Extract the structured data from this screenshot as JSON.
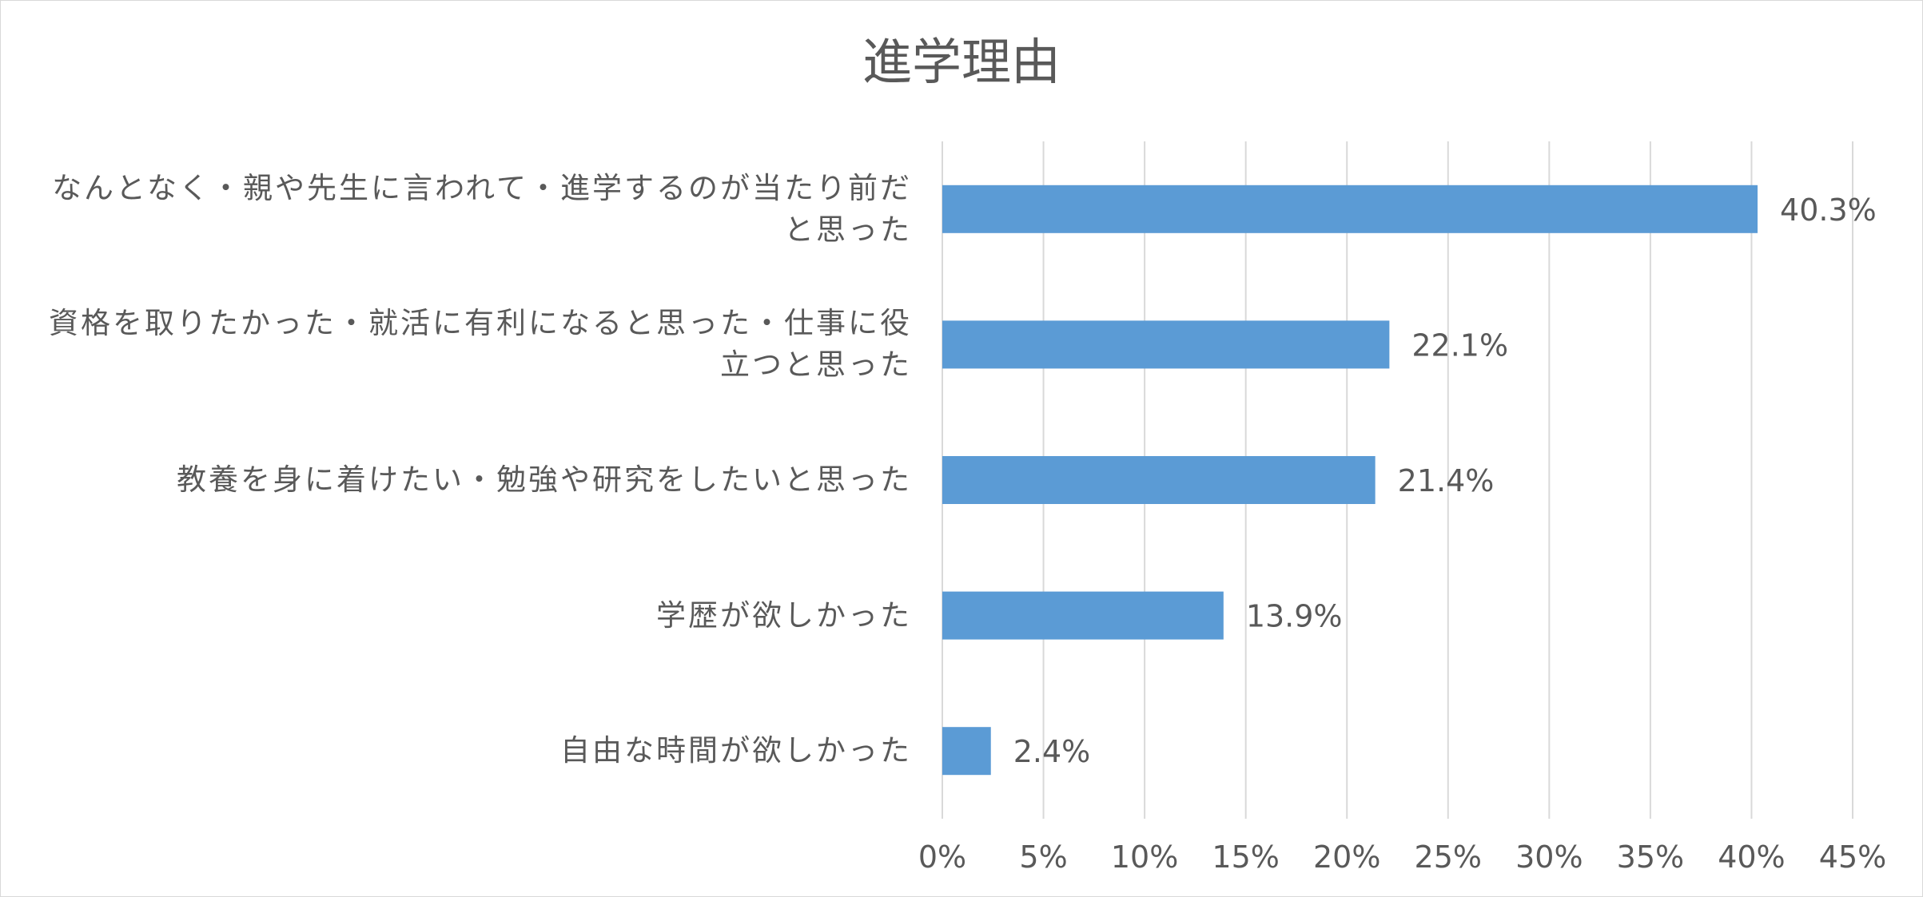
{
  "chart_data": {
    "type": "bar",
    "orientation": "horizontal",
    "title": "進学理由",
    "categories": [
      "なんとなく・親や先生に言われて・進学するのが当たり前だと思った",
      "資格を取りたかった・就活に有利になると思った・仕事に役立つと思った",
      "教養を身に着けたい・勉強や研究をしたいと思った",
      "学歴が欲しかった",
      "自由な時間が欲しかった"
    ],
    "category_lines": [
      [
        "なんとなく・親や先生に言われて・進学するのが当たり前だ",
        "と思った"
      ],
      [
        "資格を取りたかった・就活に有利になると思った・仕事に役",
        "立つと思った"
      ],
      [
        "教養を身に着けたい・勉強や研究をしたいと思った"
      ],
      [
        "学歴が欲しかった"
      ],
      [
        "自由な時間が欲しかった"
      ]
    ],
    "values": [
      40.3,
      22.1,
      21.4,
      13.9,
      2.4
    ],
    "data_labels": [
      "40.3%",
      "22.1%",
      "21.4%",
      "13.9%",
      "2.4%"
    ],
    "xlim": [
      0,
      45
    ],
    "x_ticks": [
      0,
      5,
      10,
      15,
      20,
      25,
      30,
      35,
      40,
      45
    ],
    "x_tick_labels": [
      "0%",
      "5%",
      "10%",
      "15%",
      "20%",
      "25%",
      "30%",
      "35%",
      "40%",
      "45%"
    ],
    "xlabel": "",
    "ylabel": "",
    "grid": true,
    "legend": "none",
    "colors": {
      "bar": "#5b9bd5",
      "grid": "#d9d9d9",
      "text": "#595959"
    }
  }
}
